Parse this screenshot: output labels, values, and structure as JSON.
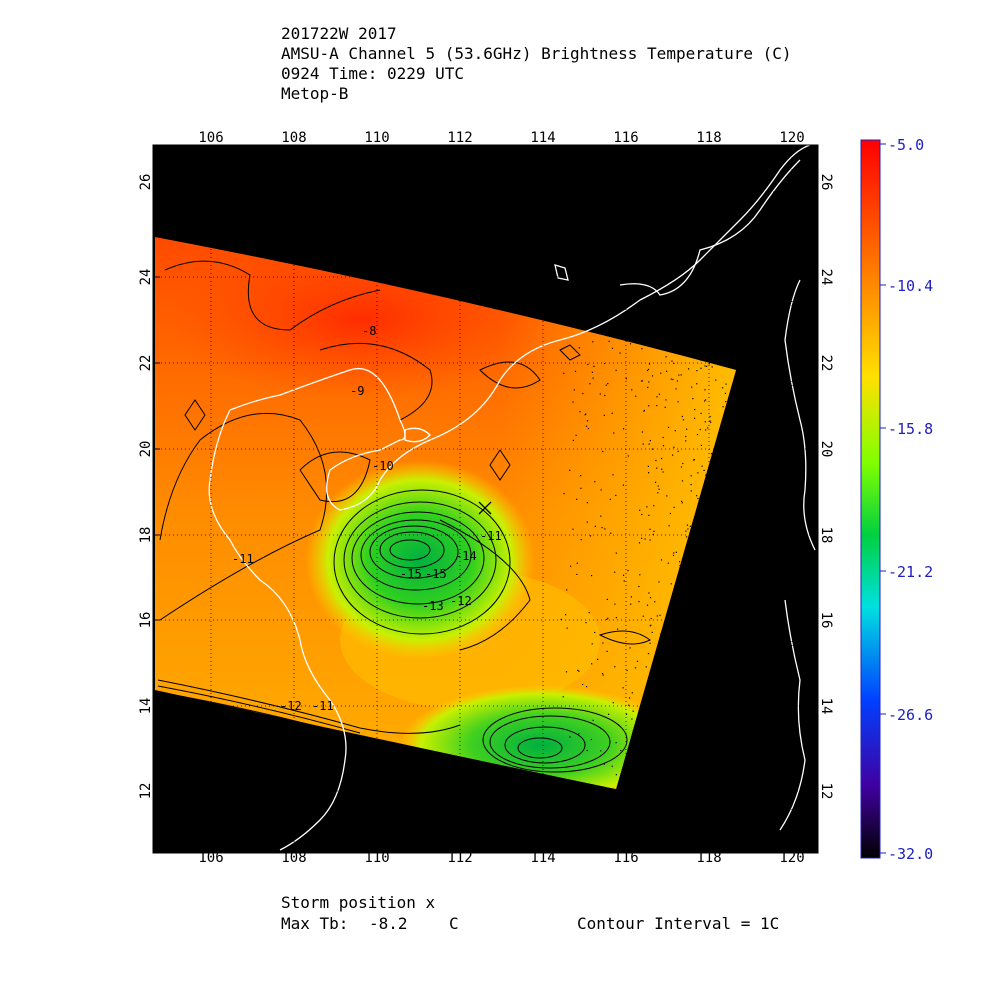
{
  "header": {
    "line1": "201722W 2017",
    "line2": "AMSU-A Channel 5 (53.6GHz) Brightness Temperature (C)",
    "line3": "0924 Time: 0229 UTC",
    "line4": "Metop-B"
  },
  "map": {
    "lon_ticks": [
      "106",
      "108",
      "110",
      "112",
      "114",
      "116",
      "118",
      "120"
    ],
    "lat_ticks": [
      "12",
      "14",
      "16",
      "18",
      "20",
      "22",
      "24",
      "26"
    ],
    "contour_labels": [
      "-8",
      "-9",
      "-10",
      "-11",
      "-15",
      "-15",
      "-14",
      "-13",
      "-12",
      "-11",
      "-12",
      "-11"
    ]
  },
  "colorbar": {
    "tick_labels": [
      "-5.0",
      "-10.4",
      "-15.8",
      "-21.2",
      "-26.6",
      "-32.0"
    ],
    "colors": [
      "#ff0000",
      "#ff6a00",
      "#ffd400",
      "#a0ff00",
      "#00d000",
      "#00e0d0",
      "#0060ff",
      "#3000c0",
      "#000000"
    ]
  },
  "footer": {
    "storm_position": "Storm position x",
    "max_tb_label": "Max Tb:",
    "max_tb_value": "-8.2",
    "max_tb_unit": "C",
    "contour_interval": "Contour Interval = 1C"
  }
}
